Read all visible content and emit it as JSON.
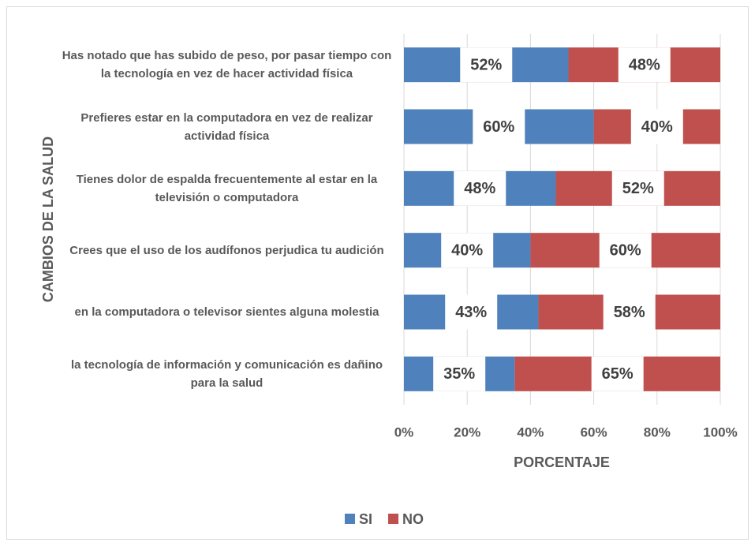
{
  "chart_data": {
    "type": "stacked_barh",
    "categories": [
      "Has notado que has subido de peso, por pasar tiempo con la tecnología en vez de hacer actividad física",
      "Prefieres estar en la computadora en vez de realizar actividad física",
      "Tienes dolor de espalda frecuentemente al estar en la televisión o computadora",
      "Crees que el uso de los audífonos perjudica tu audición",
      "en la computadora o televisor sientes alguna molestia",
      "la tecnología de información y comunicación es dañino para la salud"
    ],
    "series": [
      {
        "name": "SI",
        "color": "#4f81bd",
        "values": [
          52,
          60,
          48,
          40,
          42.5,
          35
        ],
        "value_labels": [
          "52%",
          "60%",
          "48%",
          "40%",
          "43%",
          "35%"
        ]
      },
      {
        "name": "NO",
        "color": "#c0504d",
        "values": [
          48,
          40,
          52,
          60,
          57.5,
          65
        ],
        "value_labels": [
          "48%",
          "40%",
          "52%",
          "60%",
          "58%",
          "65%"
        ]
      }
    ],
    "xlim": [
      0,
      100
    ],
    "xticks": [
      {
        "value": 0,
        "label": "0%"
      },
      {
        "value": 20,
        "label": "20%"
      },
      {
        "value": 40,
        "label": "40%"
      },
      {
        "value": 60,
        "label": "60%"
      },
      {
        "value": 80,
        "label": "80%"
      },
      {
        "value": 100,
        "label": "100%"
      }
    ],
    "xlabel": "PORCENTAJE",
    "ylabel": "CAMBIOS DE LA SALUD",
    "grid": true,
    "legend": "bottom"
  }
}
